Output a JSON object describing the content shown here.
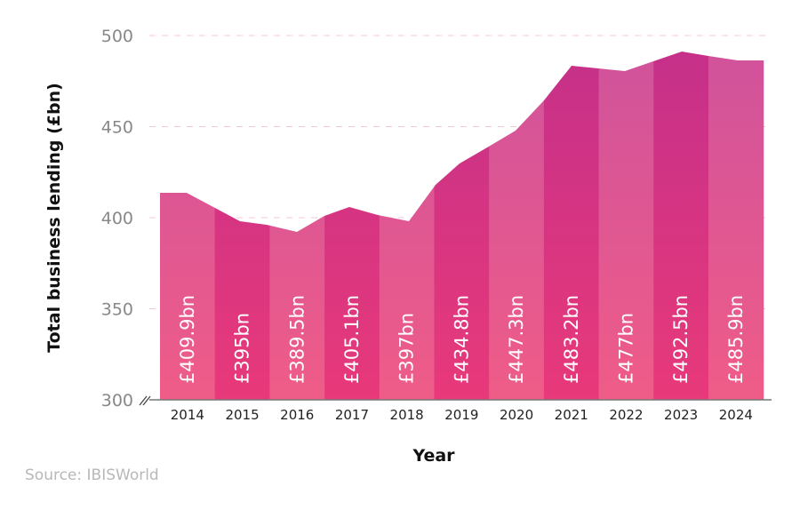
{
  "chart_data": {
    "type": "area",
    "title": "",
    "xlabel": "Year",
    "ylabel": "Total business lending (£bn)",
    "categories": [
      "2014",
      "2015",
      "2016",
      "2017",
      "2018",
      "2019",
      "2020",
      "2021",
      "2022",
      "2023",
      "2024"
    ],
    "values": [
      409.9,
      395,
      389.5,
      405.1,
      397,
      434.8,
      447.3,
      483.2,
      477,
      492.5,
      485.9
    ],
    "data_labels": [
      "£409.9bn",
      "£395bn",
      "£389.5bn",
      "£405.1bn",
      "£397bn",
      "£434.8bn",
      "£447.3bn",
      "£483.2bn",
      "£477bn",
      "£492.5bn",
      "£485.9bn"
    ],
    "ylim": [
      300,
      500
    ],
    "yticks": [
      "300",
      "350",
      "400",
      "450",
      "500"
    ],
    "y_axis_break": true,
    "grid": "horizontal dashed",
    "legend": "none",
    "colors": {
      "band_light": "#d4559c",
      "band_dark": "#cc3386",
      "bottom": "#ee5a88",
      "grid": "#f0c8d6",
      "tick_text": "#888888"
    }
  },
  "source": "Source: IBISWorld"
}
